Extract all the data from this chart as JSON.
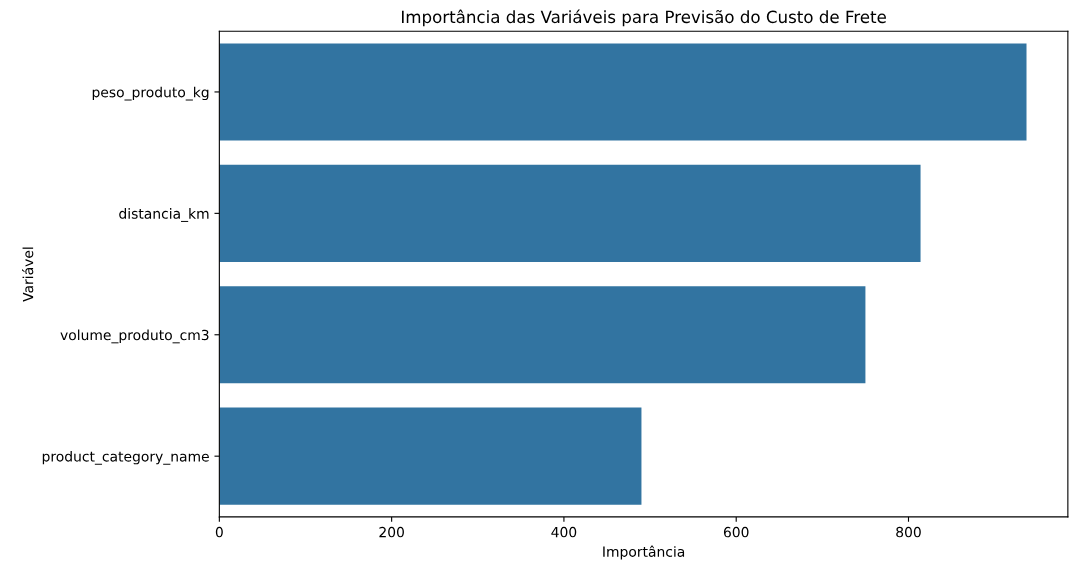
{
  "chart_data": {
    "type": "bar",
    "orientation": "horizontal",
    "title": "Importância das Variáveis para Previsão do Custo de Frete",
    "xlabel": "Importância",
    "ylabel": "Variável",
    "categories": [
      "peso_produto_kg",
      "distancia_km",
      "volume_produto_cm3",
      "product_category_name"
    ],
    "values": [
      937,
      814,
      750,
      490
    ],
    "color": "#3274a1",
    "xlim": [
      0,
      985
    ],
    "xticks": [
      0,
      200,
      400,
      600,
      800
    ],
    "grid": false
  }
}
